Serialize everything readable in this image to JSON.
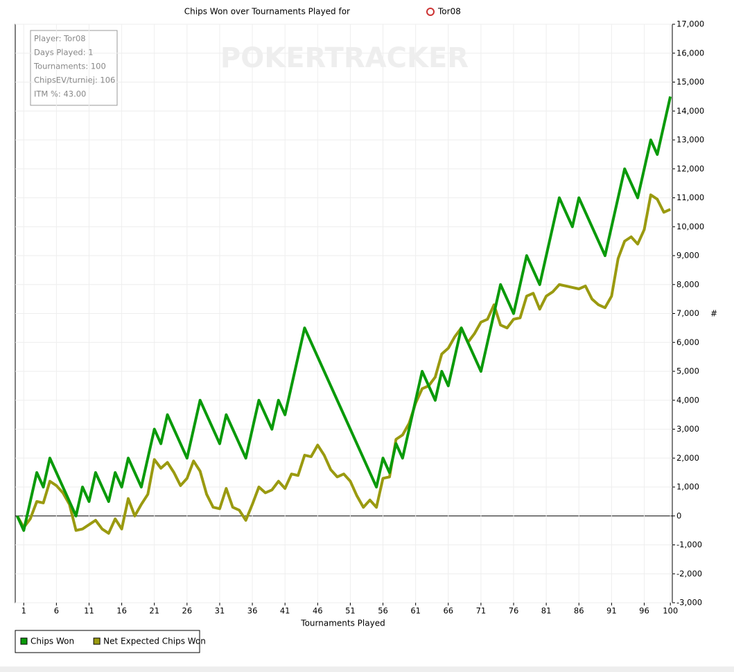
{
  "chart_data": {
    "type": "line",
    "title": "Chips Won over Tournaments Played for",
    "player": "Tor08",
    "watermark": "POKERTRACKER",
    "info": [
      "Player: Tor08",
      "Days Played: 1",
      "Tournaments: 100",
      "ChipsEV/turniej: 106",
      "ITM %: 43.00"
    ],
    "x_label": "Tournaments Played",
    "y_label": "#",
    "x": [
      0,
      1,
      2,
      3,
      4,
      5,
      6,
      7,
      8,
      9,
      10,
      11,
      12,
      13,
      14,
      15,
      16,
      17,
      18,
      19,
      20,
      21,
      22,
      23,
      24,
      25,
      26,
      27,
      28,
      29,
      30,
      31,
      32,
      33,
      34,
      35,
      36,
      37,
      38,
      39,
      40,
      41,
      42,
      43,
      44,
      45,
      46,
      47,
      48,
      49,
      50,
      51,
      52,
      53,
      54,
      55,
      56,
      57,
      58,
      59,
      60,
      61,
      62,
      63,
      64,
      65,
      66,
      67,
      68,
      69,
      70,
      71,
      72,
      73,
      74,
      75,
      76,
      77,
      78,
      79,
      80,
      81,
      82,
      83,
      84,
      85,
      86,
      87,
      88,
      89,
      90,
      91,
      92,
      93,
      94,
      95,
      96,
      97,
      98,
      99,
      100
    ],
    "series": [
      {
        "name": "Chips Won",
        "color": "#0a9a0a",
        "values": [
          0,
          -500,
          500,
          1500,
          1000,
          2000,
          1500,
          1000,
          500,
          0,
          1000,
          500,
          1500,
          1000,
          500,
          1500,
          1000,
          2000,
          1500,
          1000,
          2000,
          3000,
          2500,
          3500,
          3000,
          2500,
          2000,
          3000,
          4000,
          3500,
          3000,
          2500,
          3500,
          3000,
          2500,
          2000,
          3000,
          4000,
          3500,
          3000,
          4000,
          3500,
          4500,
          5500,
          6500,
          6000,
          5500,
          5000,
          4500,
          4000,
          3500,
          3000,
          2500,
          2000,
          1500,
          1000,
          2000,
          1500,
          2500,
          2000,
          3000,
          4000,
          5000,
          4500,
          4000,
          5000,
          4500,
          5500,
          6500,
          6000,
          5500,
          5000,
          6000,
          7000,
          8000,
          7500,
          7000,
          8000,
          9000,
          8500,
          8000,
          9000,
          10000,
          11000,
          10500,
          10000,
          11000,
          10500,
          10000,
          9500,
          9000,
          10000,
          11000,
          12000,
          11500,
          11000,
          12000,
          13000,
          12500,
          13500,
          14500
        ]
      },
      {
        "name": "Net Expected Chips Won",
        "color": "#9a9a10",
        "values": [
          0,
          -400,
          -100,
          500,
          450,
          1200,
          1050,
          800,
          400,
          -500,
          -450,
          -300,
          -150,
          -450,
          -600,
          -100,
          -450,
          600,
          0,
          400,
          750,
          1950,
          1650,
          1850,
          1500,
          1050,
          1300,
          1900,
          1550,
          750,
          300,
          250,
          950,
          300,
          200,
          -150,
          400,
          1000,
          800,
          900,
          1200,
          950,
          1450,
          1400,
          2100,
          2050,
          2450,
          2100,
          1600,
          1350,
          1450,
          1200,
          700,
          300,
          550,
          300,
          1300,
          1350,
          2650,
          2800,
          3200,
          3900,
          4400,
          4500,
          4800,
          5600,
          5800,
          6200,
          6500,
          6000,
          6300,
          6700,
          6800,
          7300,
          6600,
          6500,
          6800,
          6850,
          7600,
          7700,
          7150,
          7600,
          7750,
          8000,
          7950,
          7900,
          7850,
          7950,
          7500,
          7300,
          7200,
          7600,
          8900,
          9500,
          9650,
          9400,
          9900,
          11100,
          10950,
          10500,
          10600
        ]
      }
    ],
    "xlim": [
      -0.3,
      100.3
    ],
    "xticks": [
      1,
      6,
      11,
      16,
      21,
      26,
      31,
      36,
      41,
      46,
      51,
      56,
      61,
      66,
      71,
      76,
      81,
      86,
      91,
      96,
      100
    ],
    "ylim": [
      -3000,
      17000
    ],
    "yticks": [
      {
        "value": -3000,
        "label": "-3,000"
      },
      {
        "value": -2000,
        "label": "-2,000"
      },
      {
        "value": -1000,
        "label": "-1,000"
      },
      0,
      {
        "value": 1000,
        "label": "1,000"
      },
      {
        "value": 2000,
        "label": "2,000"
      },
      {
        "value": 3000,
        "label": "3,000"
      },
      {
        "value": 4000,
        "label": "4,000"
      },
      {
        "value": 5000,
        "label": "5,000"
      },
      {
        "value": 6000,
        "label": "6,000"
      },
      {
        "value": 7000,
        "label": "7,000"
      },
      {
        "value": 8000,
        "label": "8,000"
      },
      {
        "value": 9000,
        "label": "9,000"
      },
      {
        "value": 10000,
        "label": "10,000"
      },
      {
        "value": 11000,
        "label": "11,000"
      },
      {
        "value": 12000,
        "label": "12,000"
      },
      {
        "value": 13000,
        "label": "13,000"
      },
      {
        "value": 14000,
        "label": "14,000"
      },
      {
        "value": 15000,
        "label": "15,000"
      },
      {
        "value": 16000,
        "label": "16,000"
      },
      {
        "value": 17000,
        "label": "17,000"
      }
    ],
    "grid": true,
    "legend": "bottom-left"
  }
}
